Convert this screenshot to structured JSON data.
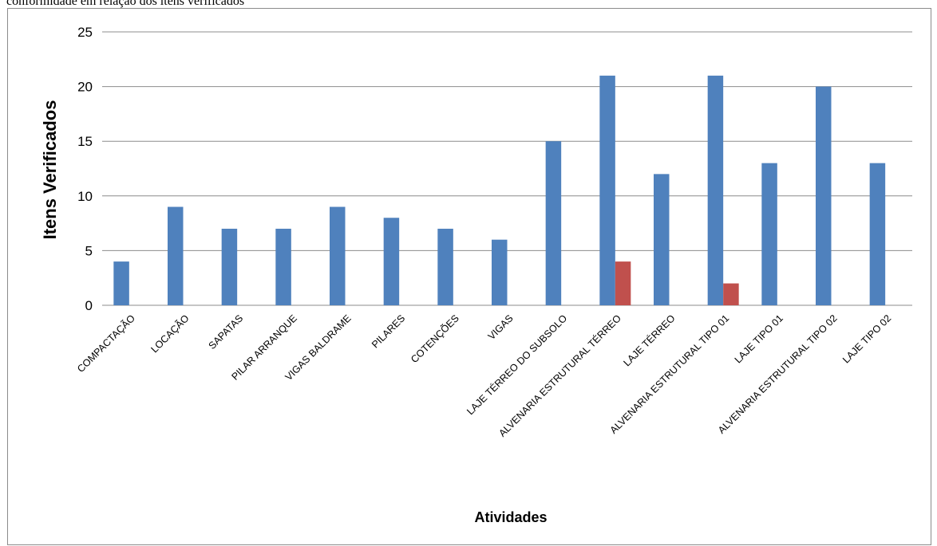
{
  "caption": "conformidade em relação dos itens verificados",
  "chart_data": {
    "type": "bar",
    "title": "",
    "xlabel": "Atividades",
    "ylabel": "Itens Verificados",
    "ylim": [
      0,
      25
    ],
    "yticks": [
      0,
      5,
      10,
      15,
      20,
      25
    ],
    "grid": true,
    "categories": [
      "COMPACTAÇÃO",
      "LOCAÇÃO",
      "SAPATAS",
      "PILAR ARRANQUE",
      "VIGAS BALDRAME",
      "PILARES",
      "COTENÇÕES",
      "VIGAS",
      "LAJE TÉRREO DO SUBSOLO",
      "ALVENARIA ESTRUTURAL TÉRREO",
      "LAJE TÉRREO",
      "ALVENARIA ESTRUTURAL TIPO 01",
      "LAJE TIPO 01",
      "ALVENARIA ESTRUTURAL TIPO 02",
      "LAJE TIPO 02"
    ],
    "series": [
      {
        "color": "#4f81bd",
        "values": [
          4,
          9,
          7,
          7,
          9,
          8,
          7,
          6,
          15,
          21,
          12,
          21,
          13,
          20,
          13
        ]
      },
      {
        "color": "#c0504d",
        "values": [
          0,
          0,
          0,
          0,
          0,
          0,
          0,
          0,
          0,
          4,
          0,
          2,
          0,
          0,
          0
        ]
      }
    ]
  }
}
